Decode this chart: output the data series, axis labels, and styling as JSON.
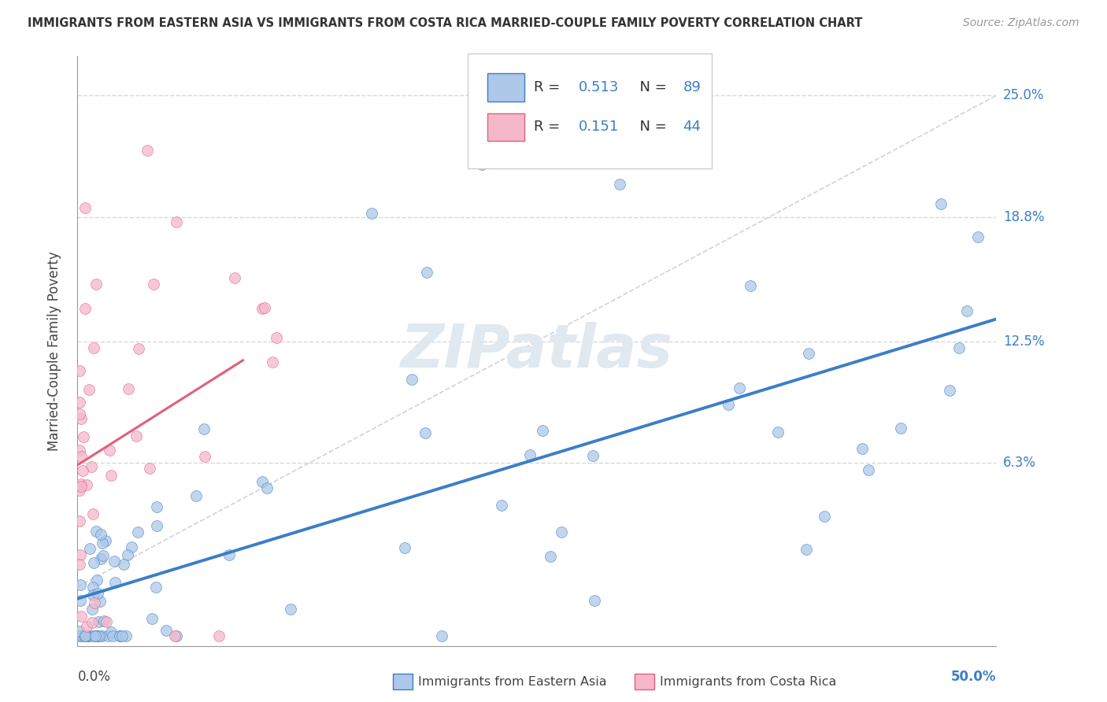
{
  "title": "IMMIGRANTS FROM EASTERN ASIA VS IMMIGRANTS FROM COSTA RICA MARRIED-COUPLE FAMILY POVERTY CORRELATION CHART",
  "source": "Source: ZipAtlas.com",
  "ylabel": "Married-Couple Family Poverty",
  "xlim": [
    0.0,
    0.5
  ],
  "ylim": [
    -0.03,
    0.27
  ],
  "ytick_labels": [
    "6.3%",
    "12.5%",
    "18.8%",
    "25.0%"
  ],
  "ytick_values": [
    0.063,
    0.125,
    0.188,
    0.25
  ],
  "legend_label1": "Immigrants from Eastern Asia",
  "legend_label2": "Immigrants from Costa Rica",
  "R1": 0.513,
  "N1": 89,
  "R2": 0.151,
  "N2": 44,
  "color1": "#adc8e8",
  "color2": "#f5b8cb",
  "line_color1": "#3b7ec8",
  "line_color2": "#e0607a",
  "dash_color": "#cccccc",
  "watermark": "ZIPatlas",
  "background_color": "#ffffff",
  "grid_color": "#d8d8d8"
}
